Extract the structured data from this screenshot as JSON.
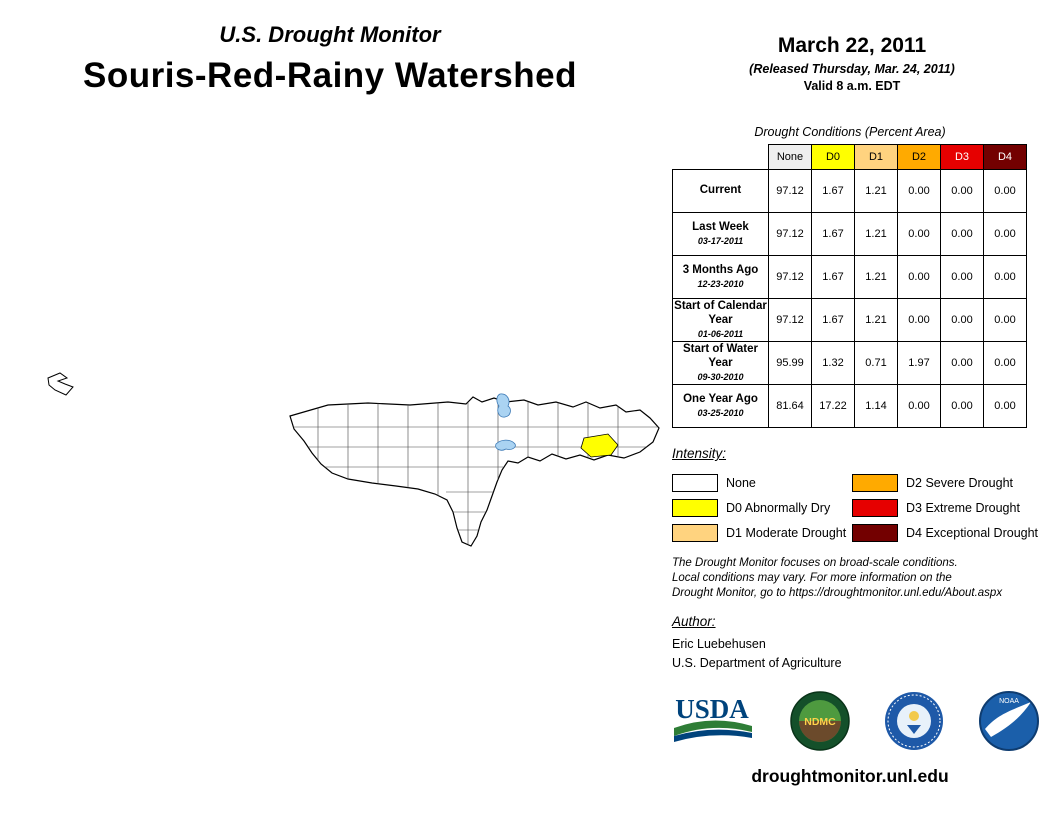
{
  "header": {
    "title_small": "U.S. Drought Monitor",
    "title_large": "Souris-Red-Rainy Watershed",
    "date": "March 22, 2011",
    "released": "(Released Thursday, Mar. 24, 2011)",
    "valid": "Valid 8 a.m. EDT"
  },
  "table": {
    "title": "Drought Conditions (Percent Area)",
    "columns": [
      {
        "label": "None",
        "bg": "#EFEFEF",
        "fg": "#000000"
      },
      {
        "label": "D0",
        "bg": "#FFFF00",
        "fg": "#000000"
      },
      {
        "label": "D1",
        "bg": "#FFD37F",
        "fg": "#000000"
      },
      {
        "label": "D2",
        "bg": "#FFAA00",
        "fg": "#000000"
      },
      {
        "label": "D3",
        "bg": "#E60000",
        "fg": "#FFFFFF"
      },
      {
        "label": "D4",
        "bg": "#730000",
        "fg": "#FFFFFF"
      }
    ],
    "rows": [
      {
        "label": "Current",
        "date": "",
        "values": [
          "97.12",
          "1.67",
          "1.21",
          "0.00",
          "0.00",
          "0.00"
        ]
      },
      {
        "label": "Last Week",
        "date": "03-17-2011",
        "values": [
          "97.12",
          "1.67",
          "1.21",
          "0.00",
          "0.00",
          "0.00"
        ]
      },
      {
        "label": "3 Months Ago",
        "date": "12-23-2010",
        "values": [
          "97.12",
          "1.67",
          "1.21",
          "0.00",
          "0.00",
          "0.00"
        ]
      },
      {
        "label": "Start of Calendar Year",
        "date": "01-06-2011",
        "values": [
          "97.12",
          "1.67",
          "1.21",
          "0.00",
          "0.00",
          "0.00"
        ]
      },
      {
        "label": "Start of Water Year",
        "date": "09-30-2010",
        "values": [
          "95.99",
          "1.32",
          "0.71",
          "1.97",
          "0.00",
          "0.00"
        ]
      },
      {
        "label": "One Year Ago",
        "date": "03-25-2010",
        "values": [
          "81.64",
          "17.22",
          "1.14",
          "0.00",
          "0.00",
          "0.00"
        ]
      }
    ]
  },
  "legend": {
    "title": "Intensity:",
    "items": [
      {
        "label": "None",
        "color": "#FFFFFF"
      },
      {
        "label": "D0 Abnormally Dry",
        "color": "#FFFF00"
      },
      {
        "label": "D1 Moderate Drought",
        "color": "#FFD37F"
      },
      {
        "label": "D2 Severe Drought",
        "color": "#FFAA00"
      },
      {
        "label": "D3 Extreme Drought",
        "color": "#E60000"
      },
      {
        "label": "D4 Exceptional Drought",
        "color": "#730000"
      }
    ]
  },
  "map": {
    "none_color": "#FFFFFF",
    "d0_color": "#FFFF00",
    "water_color": "#AAD3F2",
    "outline_color": "#000000"
  },
  "disclaimer": {
    "lines": [
      "The Drought Monitor focuses on broad-scale conditions.",
      "Local conditions may vary. For more information on the",
      "Drought Monitor, go to https://droughtmonitor.unl.edu/About.aspx"
    ]
  },
  "author": {
    "title": "Author:",
    "name": "Eric Luebehusen",
    "org": "U.S. Department of Agriculture"
  },
  "logos": {
    "usda_label": "USDA",
    "ndmc_label": "NDMC",
    "noaa_label": "NOAA"
  },
  "footer": {
    "url": "droughtmonitor.unl.edu"
  }
}
